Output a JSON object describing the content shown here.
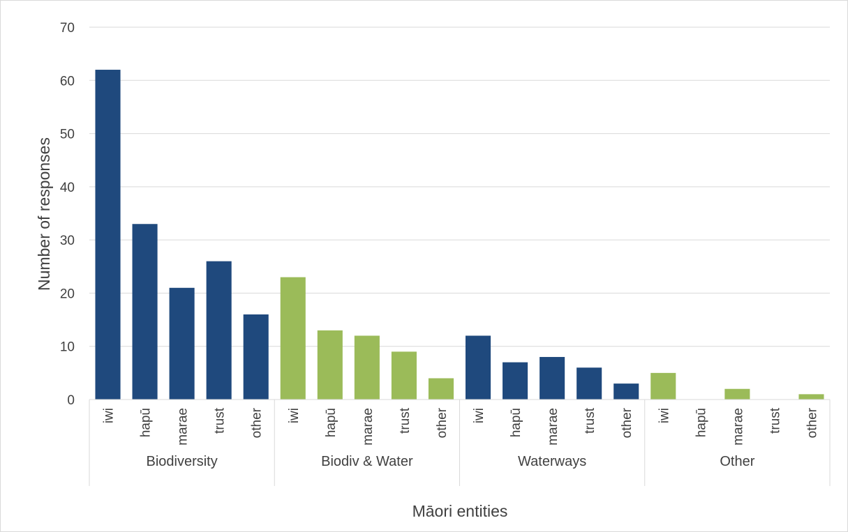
{
  "chart_data": {
    "type": "bar",
    "title": "",
    "xlabel": "Māori entities",
    "ylabel": "Number of responses",
    "ylim": [
      0,
      70
    ],
    "yticks": [
      0,
      10,
      20,
      30,
      40,
      50,
      60,
      70
    ],
    "grid": true,
    "legend": "none",
    "colors": {
      "dark": "#1f497d",
      "light": "#9bbb59"
    },
    "groups": [
      {
        "name": "Biodiversity",
        "color": "#1f497d",
        "categories": [
          "iwi",
          "hapū",
          "marae",
          "trust",
          "other"
        ],
        "values": [
          62,
          33,
          21,
          26,
          16
        ]
      },
      {
        "name": "Biodiv & Water",
        "color": "#9bbb59",
        "categories": [
          "iwi",
          "hapū",
          "marae",
          "trust",
          "other"
        ],
        "values": [
          23,
          13,
          12,
          9,
          4
        ]
      },
      {
        "name": "Waterways",
        "color": "#1f497d",
        "categories": [
          "iwi",
          "hapū",
          "marae",
          "trust",
          "other"
        ],
        "values": [
          12,
          7,
          8,
          6,
          3
        ]
      },
      {
        "name": "Other",
        "color": "#9bbb59",
        "categories": [
          "iwi",
          "hapū",
          "marae",
          "trust",
          "other"
        ],
        "values": [
          5,
          0,
          2,
          0,
          1
        ]
      }
    ]
  }
}
